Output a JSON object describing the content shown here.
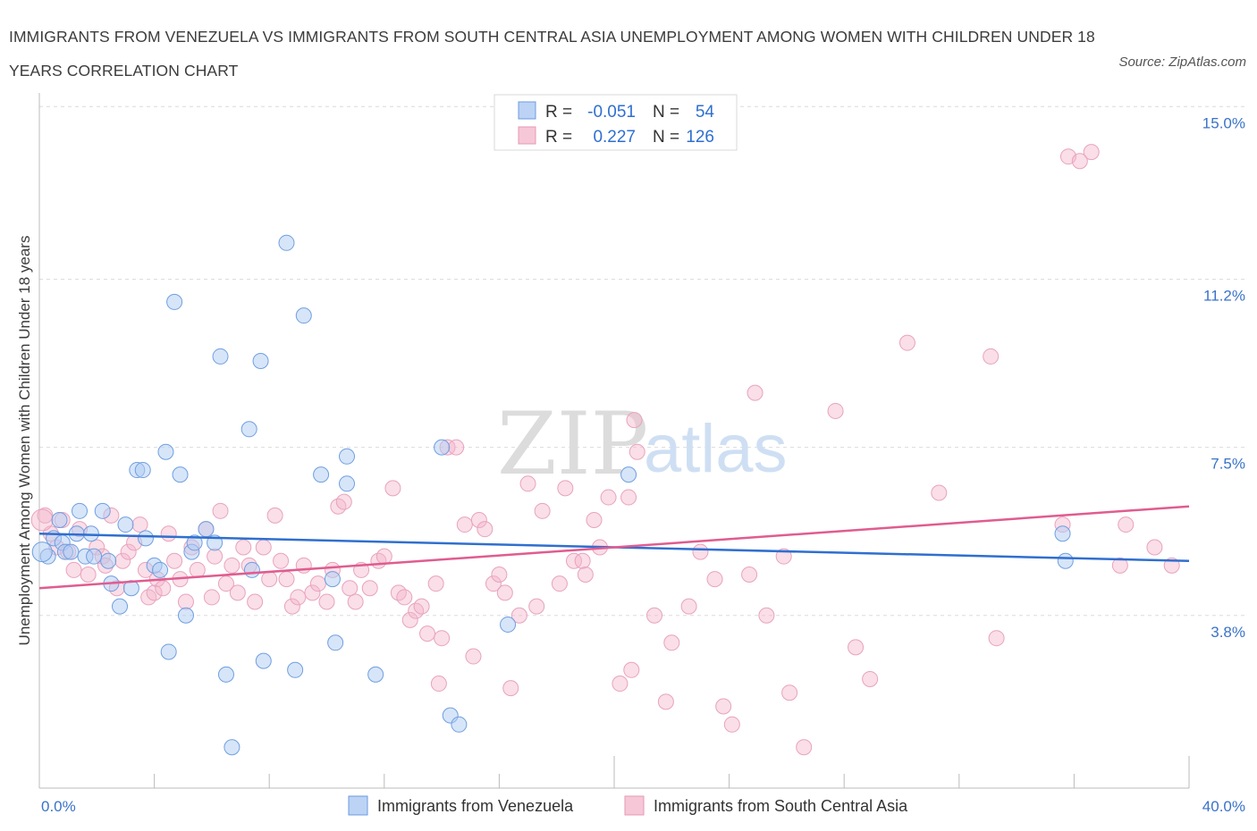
{
  "title": "IMMIGRANTS FROM VENEZUELA VS IMMIGRANTS FROM SOUTH CENTRAL ASIA UNEMPLOYMENT AMONG WOMEN WITH CHILDREN UNDER 18 YEARS CORRELATION CHART",
  "source": "Source: ZipAtlas.com",
  "watermark": {
    "zip": "ZIP",
    "atlas": "atlas"
  },
  "colors": {
    "venezuela": "#5b8fd9",
    "south_central_asia": "#e1729b"
  },
  "legend": {
    "rows": [
      {
        "r_label": "R =",
        "r_value": "-0.051",
        "n_label": "N =",
        "n_value": "54"
      },
      {
        "r_label": "R =",
        "r_value": "0.227",
        "n_label": "N =",
        "n_value": "126"
      }
    ]
  },
  "chart_data": {
    "type": "scatter",
    "title": "IMMIGRANTS FROM VENEZUELA VS IMMIGRANTS FROM SOUTH CENTRAL ASIA UNEMPLOYMENT AMONG WOMEN WITH CHILDREN UNDER 18 YEARS CORRELATION CHART",
    "xlabel": "",
    "ylabel": "Unemployment Among Women with Children Under 18 years",
    "xlim": [
      0,
      40
    ],
    "ylim": [
      0,
      15.3
    ],
    "x_tick_labels": [
      "0.0%",
      "40.0%"
    ],
    "y_ticks": [
      3.8,
      7.5,
      11.2,
      15.0
    ],
    "y_tick_labels": [
      "3.8%",
      "7.5%",
      "11.2%",
      "15.0%"
    ],
    "grid": "horizontal dashed",
    "legend_position": "top-center",
    "series": [
      {
        "name": "Immigrants from Venezuela",
        "trend": {
          "x": [
            0,
            40
          ],
          "y": [
            5.6,
            5.0
          ]
        },
        "points": [
          [
            0.3,
            5.1
          ],
          [
            0.5,
            5.5
          ],
          [
            0.7,
            5.9
          ],
          [
            0.8,
            5.4
          ],
          [
            0.9,
            5.2
          ],
          [
            1.1,
            5.2
          ],
          [
            1.3,
            5.6
          ],
          [
            1.4,
            6.1
          ],
          [
            1.6,
            5.1
          ],
          [
            1.8,
            5.6
          ],
          [
            1.9,
            5.1
          ],
          [
            2.2,
            6.1
          ],
          [
            2.4,
            5.0
          ],
          [
            2.5,
            4.5
          ],
          [
            2.8,
            4.0
          ],
          [
            3.0,
            5.8
          ],
          [
            3.2,
            4.4
          ],
          [
            3.4,
            7.0
          ],
          [
            3.6,
            7.0
          ],
          [
            3.7,
            5.5
          ],
          [
            4.0,
            4.9
          ],
          [
            4.2,
            4.8
          ],
          [
            4.4,
            7.4
          ],
          [
            4.5,
            3.0
          ],
          [
            4.7,
            10.7
          ],
          [
            4.9,
            6.9
          ],
          [
            5.1,
            3.8
          ],
          [
            5.3,
            5.2
          ],
          [
            5.4,
            5.4
          ],
          [
            5.8,
            5.7
          ],
          [
            6.1,
            5.4
          ],
          [
            6.3,
            9.5
          ],
          [
            6.5,
            2.5
          ],
          [
            6.7,
            0.9
          ],
          [
            7.4,
            4.8
          ],
          [
            7.7,
            9.4
          ],
          [
            7.3,
            7.9
          ],
          [
            7.8,
            2.8
          ],
          [
            8.6,
            12.0
          ],
          [
            8.9,
            2.6
          ],
          [
            9.2,
            10.4
          ],
          [
            9.8,
            6.9
          ],
          [
            10.2,
            4.6
          ],
          [
            10.3,
            3.2
          ],
          [
            10.7,
            6.7
          ],
          [
            10.7,
            7.3
          ],
          [
            11.7,
            2.5
          ],
          [
            14.0,
            7.5
          ],
          [
            14.3,
            1.6
          ],
          [
            14.6,
            1.4
          ],
          [
            16.3,
            3.6
          ],
          [
            20.5,
            6.9
          ],
          [
            35.6,
            5.6
          ],
          [
            35.7,
            5.0
          ]
        ]
      },
      {
        "name": "Immigrants from South Central Asia",
        "trend": {
          "x": [
            0,
            40
          ],
          "y": [
            4.4,
            6.2
          ]
        },
        "points": [
          [
            0.2,
            6.0
          ],
          [
            0.4,
            5.6
          ],
          [
            0.6,
            5.3
          ],
          [
            0.8,
            5.9
          ],
          [
            1.0,
            5.2
          ],
          [
            1.2,
            4.8
          ],
          [
            1.4,
            5.7
          ],
          [
            1.7,
            4.7
          ],
          [
            2.0,
            5.3
          ],
          [
            2.2,
            5.1
          ],
          [
            2.3,
            4.9
          ],
          [
            2.5,
            6.0
          ],
          [
            2.7,
            4.4
          ],
          [
            2.9,
            5.0
          ],
          [
            3.1,
            5.2
          ],
          [
            3.3,
            5.4
          ],
          [
            3.5,
            5.8
          ],
          [
            3.7,
            4.8
          ],
          [
            3.8,
            4.2
          ],
          [
            4.0,
            4.3
          ],
          [
            4.1,
            4.6
          ],
          [
            4.3,
            4.4
          ],
          [
            4.5,
            5.6
          ],
          [
            4.7,
            5.0
          ],
          [
            4.9,
            4.6
          ],
          [
            5.1,
            4.1
          ],
          [
            5.3,
            5.3
          ],
          [
            5.5,
            4.8
          ],
          [
            5.8,
            5.7
          ],
          [
            6.0,
            4.2
          ],
          [
            6.1,
            5.1
          ],
          [
            6.3,
            6.1
          ],
          [
            6.5,
            4.5
          ],
          [
            6.7,
            4.9
          ],
          [
            6.9,
            4.3
          ],
          [
            7.1,
            5.3
          ],
          [
            7.3,
            4.9
          ],
          [
            7.5,
            4.1
          ],
          [
            7.8,
            5.3
          ],
          [
            8.0,
            4.6
          ],
          [
            8.2,
            6.0
          ],
          [
            8.4,
            5.0
          ],
          [
            8.6,
            4.6
          ],
          [
            8.8,
            4.0
          ],
          [
            9.0,
            4.2
          ],
          [
            9.2,
            4.9
          ],
          [
            9.5,
            4.3
          ],
          [
            9.7,
            4.5
          ],
          [
            10.0,
            4.1
          ],
          [
            10.2,
            4.8
          ],
          [
            10.4,
            6.2
          ],
          [
            10.6,
            6.3
          ],
          [
            10.8,
            4.4
          ],
          [
            11.0,
            4.1
          ],
          [
            11.2,
            4.8
          ],
          [
            11.5,
            4.4
          ],
          [
            11.8,
            5.0
          ],
          [
            12.0,
            5.1
          ],
          [
            12.3,
            6.6
          ],
          [
            12.5,
            4.3
          ],
          [
            12.7,
            4.2
          ],
          [
            12.9,
            3.7
          ],
          [
            13.1,
            3.9
          ],
          [
            13.3,
            4.0
          ],
          [
            13.5,
            3.4
          ],
          [
            13.8,
            4.5
          ],
          [
            13.9,
            2.3
          ],
          [
            14.0,
            3.3
          ],
          [
            14.2,
            7.5
          ],
          [
            14.5,
            7.5
          ],
          [
            14.8,
            5.8
          ],
          [
            15.1,
            2.9
          ],
          [
            15.3,
            5.9
          ],
          [
            15.5,
            5.7
          ],
          [
            15.8,
            4.5
          ],
          [
            16.0,
            4.7
          ],
          [
            16.2,
            4.3
          ],
          [
            16.4,
            2.2
          ],
          [
            16.7,
            3.8
          ],
          [
            17.0,
            6.7
          ],
          [
            17.3,
            4.0
          ],
          [
            17.5,
            6.1
          ],
          [
            18.1,
            4.5
          ],
          [
            18.3,
            6.6
          ],
          [
            18.6,
            5.0
          ],
          [
            18.9,
            5.0
          ],
          [
            19.0,
            4.7
          ],
          [
            19.3,
            5.9
          ],
          [
            19.5,
            5.3
          ],
          [
            19.8,
            6.4
          ],
          [
            20.2,
            2.3
          ],
          [
            20.5,
            6.4
          ],
          [
            20.6,
            2.6
          ],
          [
            20.7,
            8.1
          ],
          [
            20.8,
            7.4
          ],
          [
            21.4,
            3.8
          ],
          [
            21.8,
            1.9
          ],
          [
            22.0,
            3.2
          ],
          [
            22.6,
            4.0
          ],
          [
            23.0,
            5.2
          ],
          [
            23.5,
            4.6
          ],
          [
            23.8,
            1.8
          ],
          [
            24.1,
            1.4
          ],
          [
            24.7,
            4.7
          ],
          [
            24.9,
            8.7
          ],
          [
            25.3,
            3.8
          ],
          [
            25.9,
            5.1
          ],
          [
            26.1,
            2.1
          ],
          [
            26.6,
            0.9
          ],
          [
            27.7,
            8.3
          ],
          [
            28.4,
            3.1
          ],
          [
            28.9,
            2.4
          ],
          [
            30.2,
            9.8
          ],
          [
            31.3,
            6.5
          ],
          [
            33.1,
            9.5
          ],
          [
            33.3,
            3.3
          ],
          [
            35.6,
            5.8
          ],
          [
            35.8,
            13.9
          ],
          [
            36.2,
            13.8
          ],
          [
            36.6,
            14.0
          ],
          [
            37.6,
            4.9
          ],
          [
            37.8,
            5.8
          ],
          [
            38.8,
            5.3
          ],
          [
            39.4,
            4.9
          ]
        ]
      }
    ]
  },
  "bottom_legend": [
    {
      "label": "Immigrants from Venezuela"
    },
    {
      "label": "Immigrants from South Central Asia"
    }
  ]
}
